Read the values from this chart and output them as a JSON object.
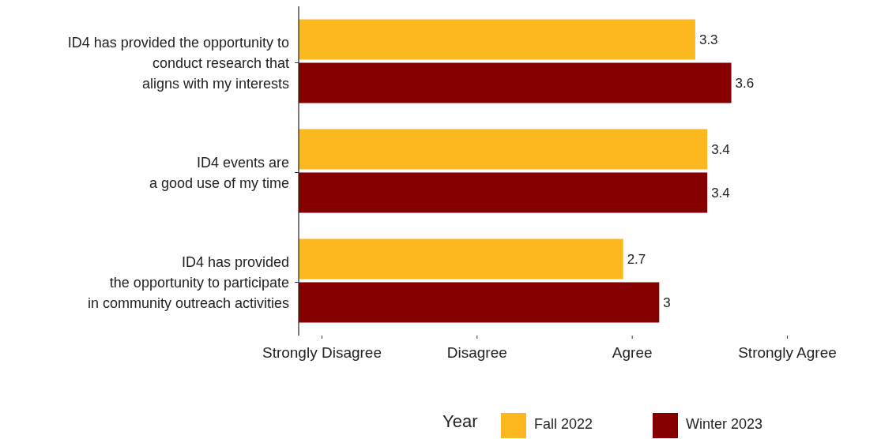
{
  "chart_data": {
    "type": "bar",
    "orientation": "horizontal",
    "categories": [
      "ID4 has provided the opportunity to\nconduct research that\naligns with my interests",
      "ID4 events are\na good use of my time",
      "ID4 has provided\nthe opportunity to participate\nin community outreach activities"
    ],
    "series": [
      {
        "name": "Fall 2022",
        "color": "#fdb71f",
        "values": [
          3.3,
          3.4,
          2.7
        ]
      },
      {
        "name": "Winter 2023",
        "color": "#870000",
        "values": [
          3.6,
          3.4,
          3
        ]
      }
    ],
    "annotations": [
      "Strongly Disagree",
      "Disagree",
      "Agree",
      "Strongly Agree"
    ],
    "data_labels": true,
    "legend": "bottom",
    "legend_title": "Year"
  }
}
